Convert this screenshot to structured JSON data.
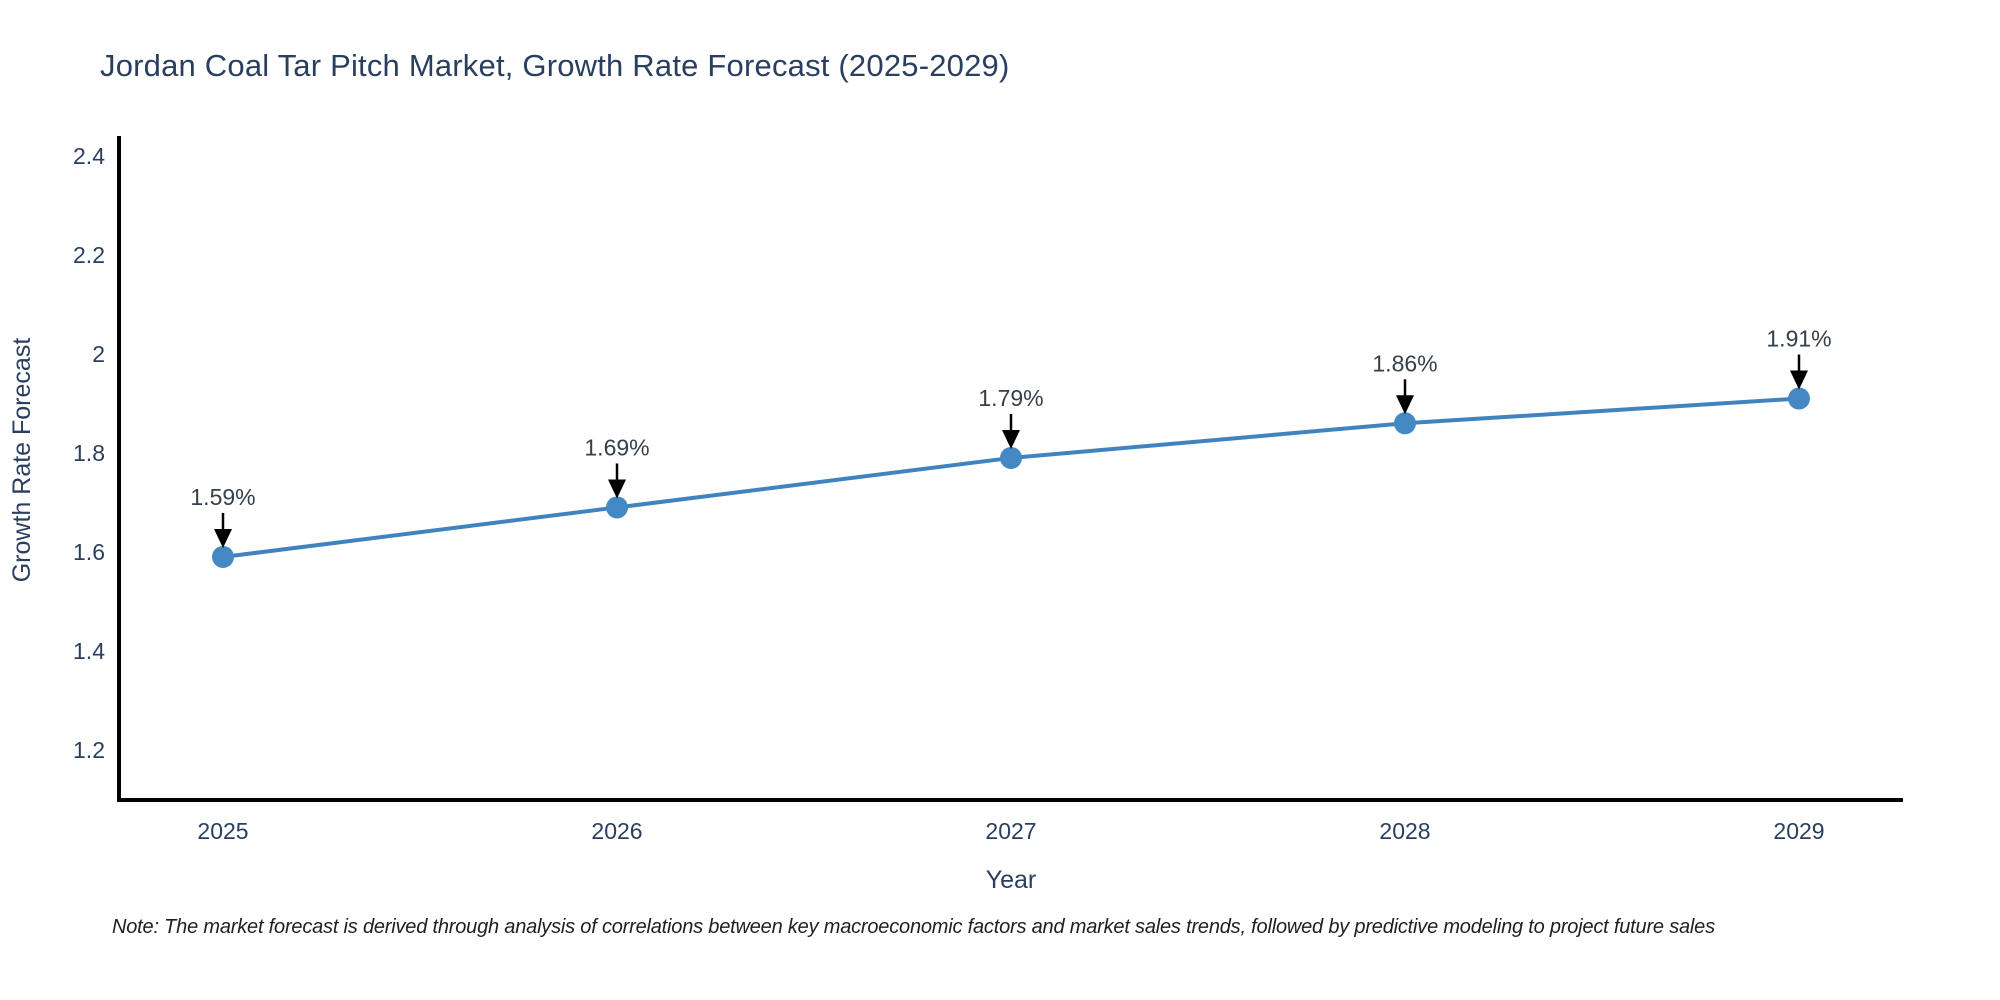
{
  "chart_data": {
    "type": "line",
    "title": "Jordan Coal Tar Pitch Market, Growth Rate Forecast (2025-2029)",
    "xlabel": "Year",
    "ylabel": "Growth Rate Forecast",
    "x": [
      2025,
      2026,
      2027,
      2028,
      2029
    ],
    "y": [
      1.59,
      1.69,
      1.79,
      1.86,
      1.91
    ],
    "series": [
      {
        "name": "Growth Rate Forecast",
        "values": [
          1.59,
          1.69,
          1.79,
          1.86,
          1.91
        ]
      }
    ],
    "point_labels": [
      "1.59%",
      "1.69%",
      "1.79%",
      "1.86%",
      "1.91%"
    ],
    "xticks": [
      "2025",
      "2026",
      "2027",
      "2028",
      "2029"
    ],
    "yticks": [
      "1.2",
      "1.4",
      "1.6",
      "1.8",
      "2",
      "2.2",
      "2.4"
    ],
    "ytick_values": [
      1.2,
      1.4,
      1.6,
      1.8,
      2.0,
      2.2,
      2.4
    ],
    "ylim": [
      1.1,
      2.44
    ],
    "xlim": [
      2024.7,
      2029.3
    ],
    "grid": false,
    "legend": null,
    "annotation_style": "down-arrow-to-point"
  },
  "note": {
    "text": "Note: The market forecast is derived through analysis of correlations between key macroeconomic factors and market sales trends, followed by predictive modeling to project future sales"
  },
  "colors": {
    "line": "#4183bf",
    "marker": "#4489c4",
    "axis": "#000000",
    "arrow": "#000000",
    "tick_text": "#2a3f5f",
    "axis_title_text": "#2a3f5f",
    "title_text": "#2a3f5f",
    "annotation_text": "#36404a",
    "background": "#ffffff"
  }
}
